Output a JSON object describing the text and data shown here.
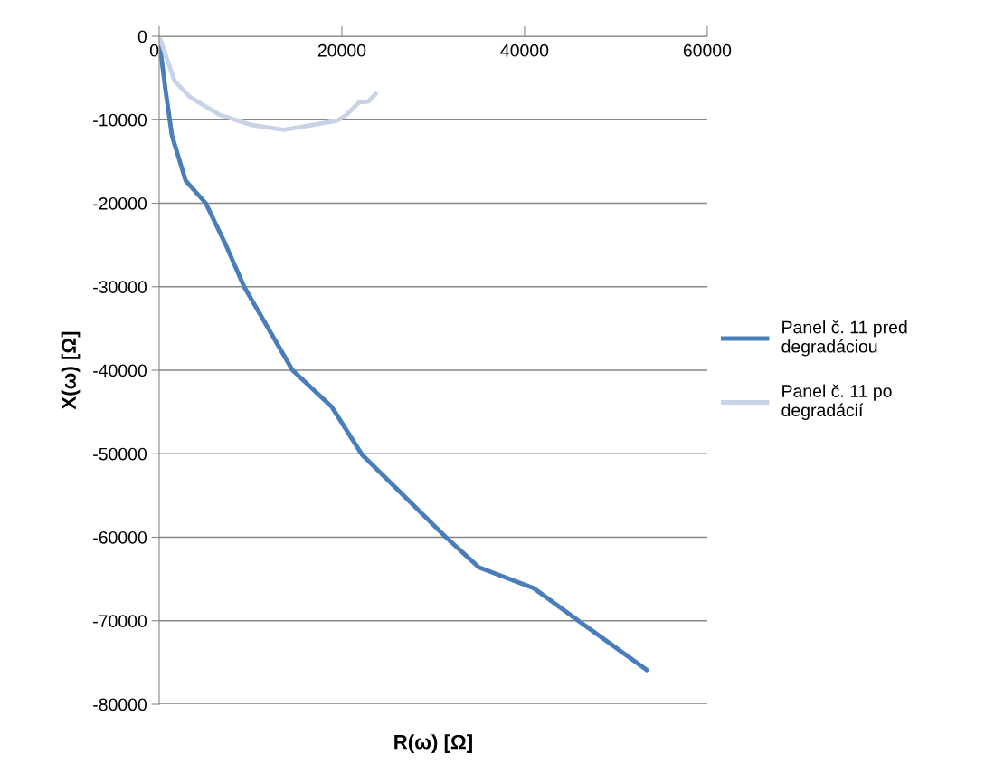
{
  "chart_data": {
    "type": "line",
    "xlabel": "R(ω) [Ω]",
    "ylabel": "X(ω) [Ω]",
    "xlim": [
      0,
      60000
    ],
    "xticks": [
      0,
      20000,
      40000,
      60000
    ],
    "ylim": [
      -80000,
      0
    ],
    "yticks": [
      -80000,
      -70000,
      -60000,
      -50000,
      -40000,
      -30000,
      -20000,
      -10000,
      0
    ],
    "grid": "y",
    "legend": "right",
    "marker": "none",
    "line_style": "solid",
    "series": [
      {
        "name": "Panel č. 11 pred\ndegradáciou",
        "color": "#4a7ebb",
        "x": [
          100,
          700,
          1400,
          2900,
          5100,
          7300,
          9300,
          14600,
          18900,
          22200,
          31400,
          35000,
          41000,
          45900,
          53400
        ],
        "values": [
          -1300,
          -6500,
          -11900,
          -17300,
          -20000,
          -25000,
          -30000,
          -40000,
          -44400,
          -50100,
          -60000,
          -63600,
          -66100,
          -70000,
          -75900
        ]
      },
      {
        "name": "Panel č. 11 po\ndegradácií",
        "color": "#c8d3e6",
        "x": [
          0,
          1700,
          3400,
          6600,
          10000,
          13600,
          16900,
          19500,
          20500,
          21900,
          22900,
          23700
        ],
        "values": [
          0,
          -5400,
          -7300,
          -9400,
          -10600,
          -11200,
          -10600,
          -10100,
          -9400,
          -7900,
          -7800,
          -6900
        ]
      }
    ]
  }
}
